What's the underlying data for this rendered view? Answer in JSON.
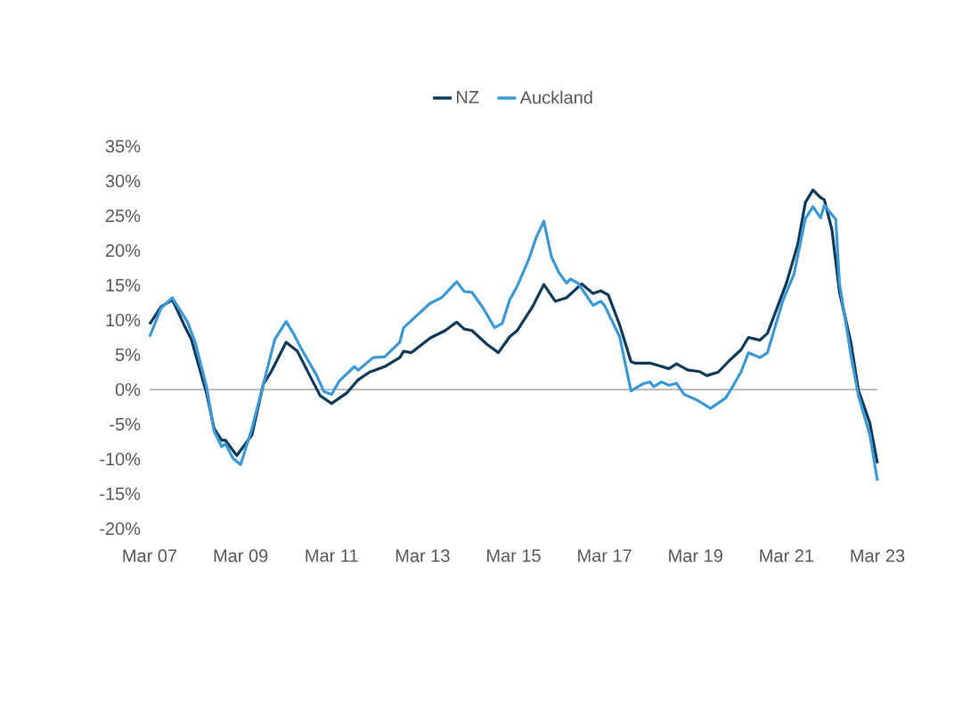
{
  "chart_data": {
    "type": "line",
    "xlim": [
      "2007-03",
      "2023-03"
    ],
    "xticks": [
      {
        "value": "2007-03",
        "label": "Mar 07"
      },
      {
        "value": "2009-03",
        "label": "Mar 09"
      },
      {
        "value": "2011-03",
        "label": "Mar 11"
      },
      {
        "value": "2013-03",
        "label": "Mar 13"
      },
      {
        "value": "2015-03",
        "label": "Mar 15"
      },
      {
        "value": "2017-03",
        "label": "Mar 17"
      },
      {
        "value": "2019-03",
        "label": "Mar 19"
      },
      {
        "value": "2021-03",
        "label": "Mar 21"
      },
      {
        "value": "2023-03",
        "label": "Mar 23"
      }
    ],
    "ylim": [
      -20,
      35
    ],
    "yticks": [
      {
        "value": -20,
        "label": "-20%"
      },
      {
        "value": -15,
        "label": "-15%"
      },
      {
        "value": -10,
        "label": "-10%"
      },
      {
        "value": -5,
        "label": "-5%"
      },
      {
        "value": 0,
        "label": "0%"
      },
      {
        "value": 5,
        "label": "5%"
      },
      {
        "value": 10,
        "label": "10%"
      },
      {
        "value": 15,
        "label": "15%"
      },
      {
        "value": 20,
        "label": "20%"
      },
      {
        "value": 25,
        "label": "25%"
      },
      {
        "value": 30,
        "label": "30%"
      },
      {
        "value": 35,
        "label": "35%"
      }
    ],
    "grid": false,
    "legend": "top",
    "ref_lines": [
      {
        "axis": "y",
        "value": 0,
        "color": "#a6a6a6"
      }
    ],
    "series": [
      {
        "name": "NZ",
        "color": "#0e3a5c",
        "x": [
          "2007-03",
          "2007-06",
          "2007-09",
          "2007-12",
          "2008-02",
          "2008-06",
          "2008-08",
          "2008-10",
          "2008-11",
          "2009-02",
          "2009-06",
          "2009-09",
          "2009-11",
          "2010-03",
          "2010-06",
          "2010-10",
          "2010-12",
          "2011-03",
          "2011-07",
          "2011-10",
          "2012-01",
          "2012-05",
          "2012-09",
          "2012-10",
          "2012-12",
          "2013-05",
          "2013-09",
          "2013-12",
          "2014-02",
          "2014-04",
          "2014-08",
          "2014-11",
          "2015-02",
          "2015-04",
          "2015-08",
          "2015-11",
          "2016-02",
          "2016-05",
          "2016-09",
          "2016-12",
          "2017-02",
          "2017-04",
          "2017-07",
          "2017-10",
          "2017-11",
          "2018-03",
          "2018-05",
          "2018-08",
          "2018-10",
          "2019-01",
          "2019-04",
          "2019-06",
          "2019-09",
          "2019-12",
          "2020-03",
          "2020-05",
          "2020-08",
          "2020-10",
          "2021-03",
          "2021-06",
          "2021-08",
          "2021-10",
          "2021-12",
          "2022-01",
          "2022-03",
          "2022-05",
          "2022-08",
          "2022-10",
          "2023-01",
          "2023-03"
        ],
        "values": [
          9.4,
          11.9,
          12.9,
          9.4,
          7.2,
          -0.5,
          -5.6,
          -7.3,
          -7.3,
          -9.5,
          -6.5,
          0.8,
          2.5,
          6.8,
          5.5,
          1.2,
          -0.9,
          -2.0,
          -0.5,
          1.4,
          2.5,
          3.3,
          4.6,
          5.5,
          5.3,
          7.4,
          8.5,
          9.7,
          8.7,
          8.5,
          6.5,
          5.3,
          7.6,
          8.5,
          11.9,
          15.1,
          12.7,
          13.2,
          15.2,
          13.8,
          14.2,
          13.6,
          9.3,
          4.0,
          3.8,
          3.8,
          3.5,
          3.0,
          3.7,
          2.8,
          2.6,
          2.0,
          2.5,
          4.2,
          5.7,
          7.5,
          7.1,
          8.1,
          15.3,
          20.9,
          26.9,
          28.7,
          27.6,
          27.3,
          23.0,
          14.0,
          6.8,
          -0.1,
          -4.8,
          -10.6
        ]
      },
      {
        "name": "Auckland",
        "color": "#3a9ad9",
        "x": [
          "2007-03",
          "2007-06",
          "2007-09",
          "2008-01",
          "2008-03",
          "2008-06",
          "2008-08",
          "2008-10",
          "2008-11",
          "2009-01",
          "2009-03",
          "2009-06",
          "2009-10",
          "2009-12",
          "2010-03",
          "2010-05",
          "2010-07",
          "2010-11",
          "2011-01",
          "2011-03",
          "2011-05",
          "2011-09",
          "2011-10",
          "2012-02",
          "2012-05",
          "2012-09",
          "2012-10",
          "2013-01",
          "2013-05",
          "2013-08",
          "2013-12",
          "2014-02",
          "2014-04",
          "2014-07",
          "2014-10",
          "2014-12",
          "2015-02",
          "2015-04",
          "2015-07",
          "2015-09",
          "2015-11",
          "2016-01",
          "2016-03",
          "2016-05",
          "2016-06",
          "2016-08",
          "2016-12",
          "2017-02",
          "2017-03",
          "2017-07",
          "2017-10",
          "2018-01",
          "2018-03",
          "2018-04",
          "2018-06",
          "2018-08",
          "2018-10",
          "2018-12",
          "2019-03",
          "2019-07",
          "2019-11",
          "2020-01",
          "2020-03",
          "2020-05",
          "2020-08",
          "2020-10",
          "2021-02",
          "2021-05",
          "2021-08",
          "2021-10",
          "2021-12",
          "2022-01",
          "2022-04",
          "2022-05",
          "2022-08",
          "2022-10",
          "2023-01",
          "2023-03"
        ],
        "values": [
          7.6,
          11.7,
          13.2,
          9.7,
          6.8,
          0.4,
          -6.0,
          -8.2,
          -7.8,
          -9.9,
          -10.8,
          -5.6,
          2.9,
          7.2,
          9.8,
          8.0,
          5.9,
          2.1,
          -0.3,
          -0.7,
          1.2,
          3.3,
          2.8,
          4.6,
          4.7,
          6.8,
          8.9,
          10.4,
          12.4,
          13.2,
          15.5,
          14.1,
          14.0,
          11.7,
          8.9,
          9.5,
          12.9,
          14.9,
          18.7,
          21.9,
          24.2,
          19.1,
          16.8,
          15.3,
          15.9,
          15.3,
          12.1,
          12.7,
          12.1,
          7.6,
          -0.2,
          0.8,
          1.1,
          0.4,
          1.1,
          0.6,
          0.9,
          -0.7,
          -1.4,
          -2.7,
          -1.2,
          0.6,
          2.5,
          5.3,
          4.6,
          5.3,
          12.7,
          16.6,
          24.6,
          26.3,
          24.7,
          26.5,
          24.5,
          15.3,
          5.0,
          -0.9,
          -6.5,
          -13.1
        ]
      }
    ]
  }
}
